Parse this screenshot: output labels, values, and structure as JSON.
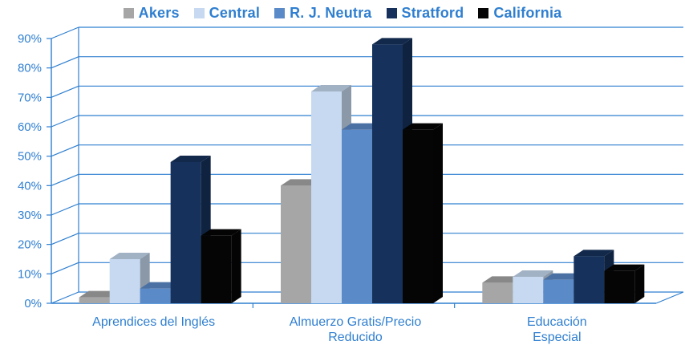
{
  "chart_data": {
    "type": "bar",
    "categories": [
      [
        "Aprendices del Inglés"
      ],
      [
        "Almuerzo Gratis/Precio",
        "Reducido"
      ],
      [
        "Educación",
        "Especial"
      ]
    ],
    "series": [
      {
        "name": "Akers",
        "color": "#a6a6a6",
        "values": [
          2,
          40,
          7
        ]
      },
      {
        "name": "Central",
        "color": "#c6d9f0",
        "values": [
          15,
          72,
          9
        ]
      },
      {
        "name": "R. J. Neutra",
        "color": "#5b8ac8",
        "values": [
          5,
          59,
          8
        ]
      },
      {
        "name": "Stratford",
        "color": "#16325c",
        "values": [
          48,
          88,
          16
        ]
      },
      {
        "name": "California",
        "color": "#050505",
        "values": [
          23,
          59,
          11
        ]
      }
    ],
    "ylim": [
      0,
      90
    ],
    "yticks": [
      "0%",
      "10%",
      "20%",
      "30%",
      "40%",
      "50%",
      "60%",
      "70%",
      "80%",
      "90%"
    ],
    "legend_position": "top",
    "grid": true
  }
}
